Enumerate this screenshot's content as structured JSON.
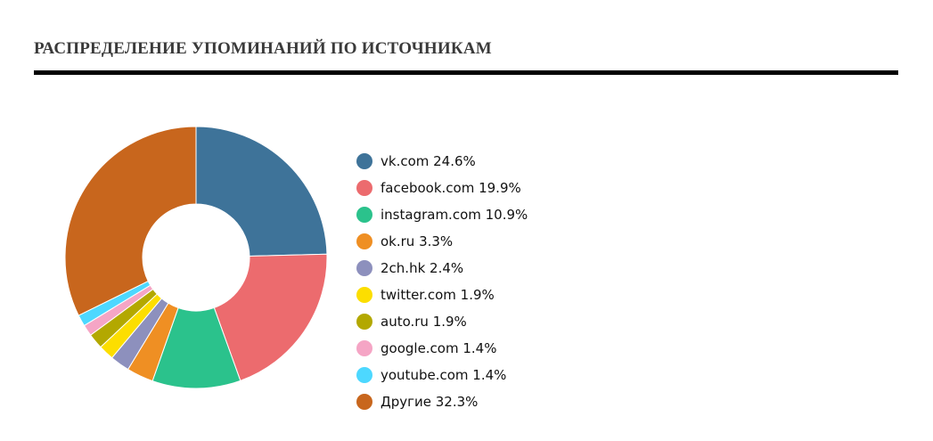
{
  "chart_title": "РАСПРЕДЕЛЕНИЕ УПОМИНАНИЙ ПО ИСТОЧНИКАМ",
  "chart_data": {
    "type": "pie",
    "style": "donut",
    "legend_position": "right",
    "title": "РАСПРЕДЕЛЕНИЕ УПОМИНАНИЙ ПО ИСТОЧНИКАМ",
    "slices": [
      {
        "label": "vk.com",
        "value": 24.6,
        "display": "vk.com 24.6%",
        "color": "#3e7399"
      },
      {
        "label": "facebook.com",
        "value": 19.9,
        "display": "facebook.com 19.9%",
        "color": "#ec6b6e"
      },
      {
        "label": "instagram.com",
        "value": 10.9,
        "display": "instagram.com 10.9%",
        "color": "#2bc28c"
      },
      {
        "label": "ok.ru",
        "value": 3.3,
        "display": "ok.ru 3.3%",
        "color": "#ef8f23"
      },
      {
        "label": "2ch.hk",
        "value": 2.4,
        "display": "2ch.hk 2.4%",
        "color": "#8d90bd"
      },
      {
        "label": "twitter.com",
        "value": 1.9,
        "display": "twitter.com 1.9%",
        "color": "#fcde00"
      },
      {
        "label": "auto.ru",
        "value": 1.9,
        "display": "auto.ru 1.9%",
        "color": "#b3a800"
      },
      {
        "label": "google.com",
        "value": 1.4,
        "display": "google.com 1.4%",
        "color": "#f5a5c5"
      },
      {
        "label": "youtube.com",
        "value": 1.4,
        "display": "youtube.com 1.4%",
        "color": "#4dd8ff"
      },
      {
        "label": "Другие",
        "value": 32.3,
        "display": "Другие 32.3%",
        "color": "#c8661d"
      }
    ]
  }
}
